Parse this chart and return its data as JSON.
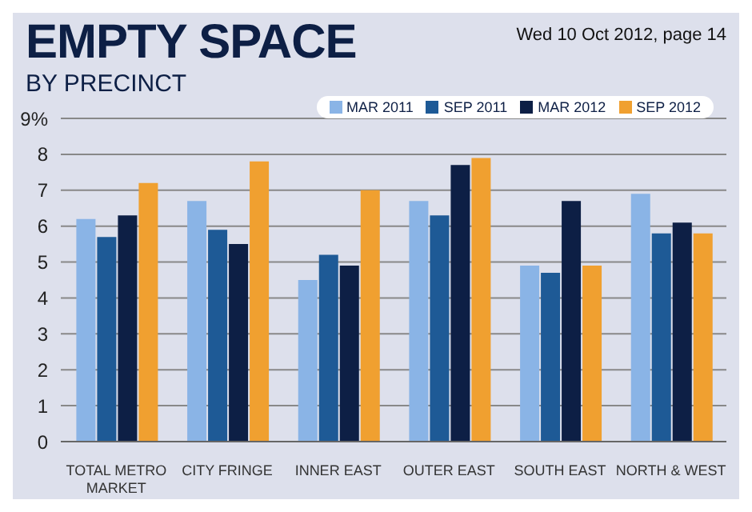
{
  "chart_data": {
    "type": "bar",
    "title": "EMPTY SPACE",
    "subtitle": "BY PRECINCT",
    "annotations": [
      "Wed 10 Oct 2012, page 14"
    ],
    "categories": [
      "TOTAL METRO MARKET",
      "CITY FRINGE",
      "INNER EAST",
      "OUTER EAST",
      "SOUTH EAST",
      "NORTH & WEST"
    ],
    "series": [
      {
        "name": "MAR 2011",
        "color": "#8ab4e6",
        "values": [
          6.2,
          6.7,
          4.5,
          6.7,
          4.9,
          6.9
        ]
      },
      {
        "name": "SEP 2011",
        "color": "#1e5a96",
        "values": [
          5.7,
          5.9,
          5.2,
          6.3,
          4.7,
          5.8
        ]
      },
      {
        "name": "MAR 2012",
        "color": "#0d1f45",
        "values": [
          6.3,
          5.5,
          4.9,
          7.7,
          6.7,
          6.1
        ]
      },
      {
        "name": "SEP 2012",
        "color": "#f0a030",
        "values": [
          7.2,
          7.8,
          7.0,
          7.9,
          4.9,
          5.8
        ]
      }
    ],
    "ylim": [
      0,
      9
    ],
    "yticks": [
      0,
      1,
      2,
      3,
      4,
      5,
      6,
      7,
      8,
      {
        "value": 9,
        "label": "9%"
      }
    ],
    "grid": "y",
    "legend": "top right"
  }
}
